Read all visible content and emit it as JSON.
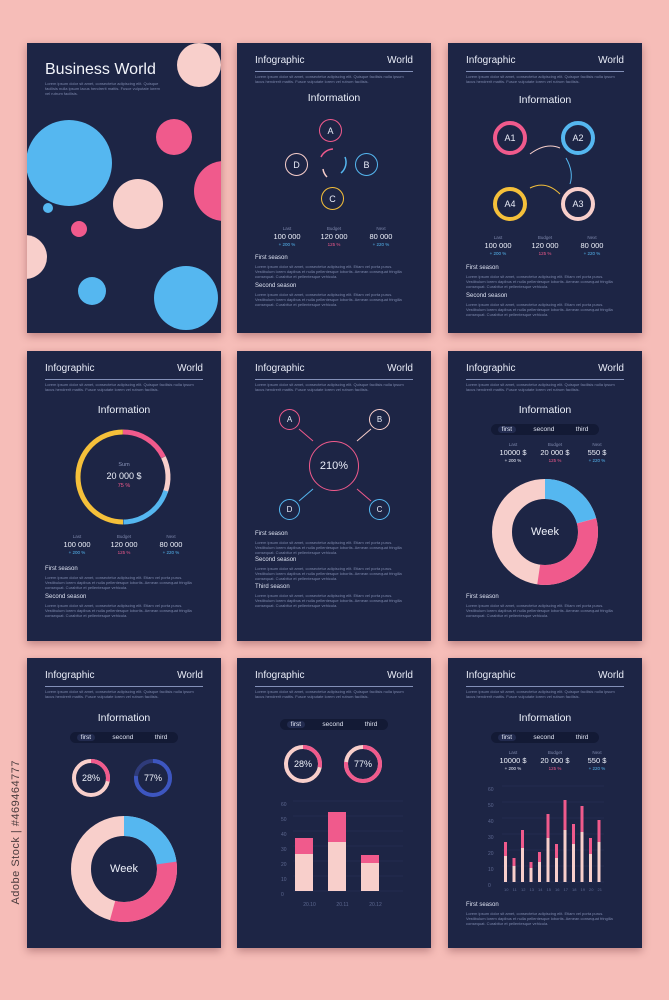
{
  "colors": {
    "bg": "#f6bdb8",
    "card": "#1d2545",
    "pink": "#f05a8c",
    "blue": "#55b7f0",
    "yellow": "#f5c03a",
    "peach": "#f8cfcb"
  },
  "lorem": "Lorem ipsum dolor sit amet, consectetur adipiscing elit. Quisque facilisis nulla ipsum lacus hendrerit mattis. Fusce vulputate lorem vel rutrum facilisis.",
  "cover": {
    "title": "Business World",
    "text": "Lorem ipsum dolor sit amet, consectetur adipiscing elit. Quisque facilisis nulla ipsum lacus hendrerit mattis. Fusce vulputate lorem vel rutrum facilisis."
  },
  "header": {
    "left": "Infographic",
    "right": "World"
  },
  "info_title": "Information",
  "stats": [
    {
      "label": "Last",
      "value": "100 000",
      "delta": "+ 200 %",
      "color": "#55b7f0"
    },
    {
      "label": "Budget",
      "value": "120 000",
      "delta": "125 %",
      "color": "#f05a8c"
    },
    {
      "label": "Next",
      "value": "80 000",
      "delta": "+ 220 %",
      "color": "#55b7f0"
    }
  ],
  "stats2": [
    {
      "label": "Last",
      "value": "10000 $",
      "delta": "+ 200 %",
      "color": "#e9ecf8"
    },
    {
      "label": "Budget",
      "value": "20 000 $",
      "delta": "125 %",
      "color": "#f05a8c"
    },
    {
      "label": "Next",
      "value": "550 $",
      "delta": "+ 220 %",
      "color": "#55b7f0"
    }
  ],
  "seasons": {
    "first": "First season",
    "second": "Second season",
    "third": "Third season"
  },
  "season_text": "Lorem ipsum dolor sit amet, consectetur adipiscing elit. Etiam vel porta purus. Vestibulum lorem dapibus et nulla pellentesque lobortis. Aenean consequat fringilla consequat. Curabitur et pellentesque vehicula.",
  "nodes_abcd": [
    "A",
    "B",
    "C",
    "D"
  ],
  "nodes_a": [
    "A1",
    "A2",
    "A3",
    "A4"
  ],
  "sum": {
    "label": "Sum",
    "value": "20 000 $",
    "pct": "75 %"
  },
  "growth": "210%",
  "tabs": [
    "first",
    "second",
    "third"
  ],
  "week": "Week",
  "donuts": [
    "28%",
    "77%"
  ],
  "bars": {
    "axis": [
      "60",
      "50",
      "40",
      "30",
      "20",
      "10",
      "0"
    ],
    "categories": [
      "20.10",
      "20.11",
      "20.12"
    ]
  },
  "bars2": {
    "axis": [
      "60",
      "50",
      "40",
      "30",
      "20",
      "10",
      "0"
    ],
    "categories": [
      "10",
      "11",
      "12",
      "13",
      "14",
      "15",
      "16",
      "17",
      "18",
      "19",
      "20",
      "21"
    ]
  },
  "watermark": "Adobe Stock | #469464777"
}
